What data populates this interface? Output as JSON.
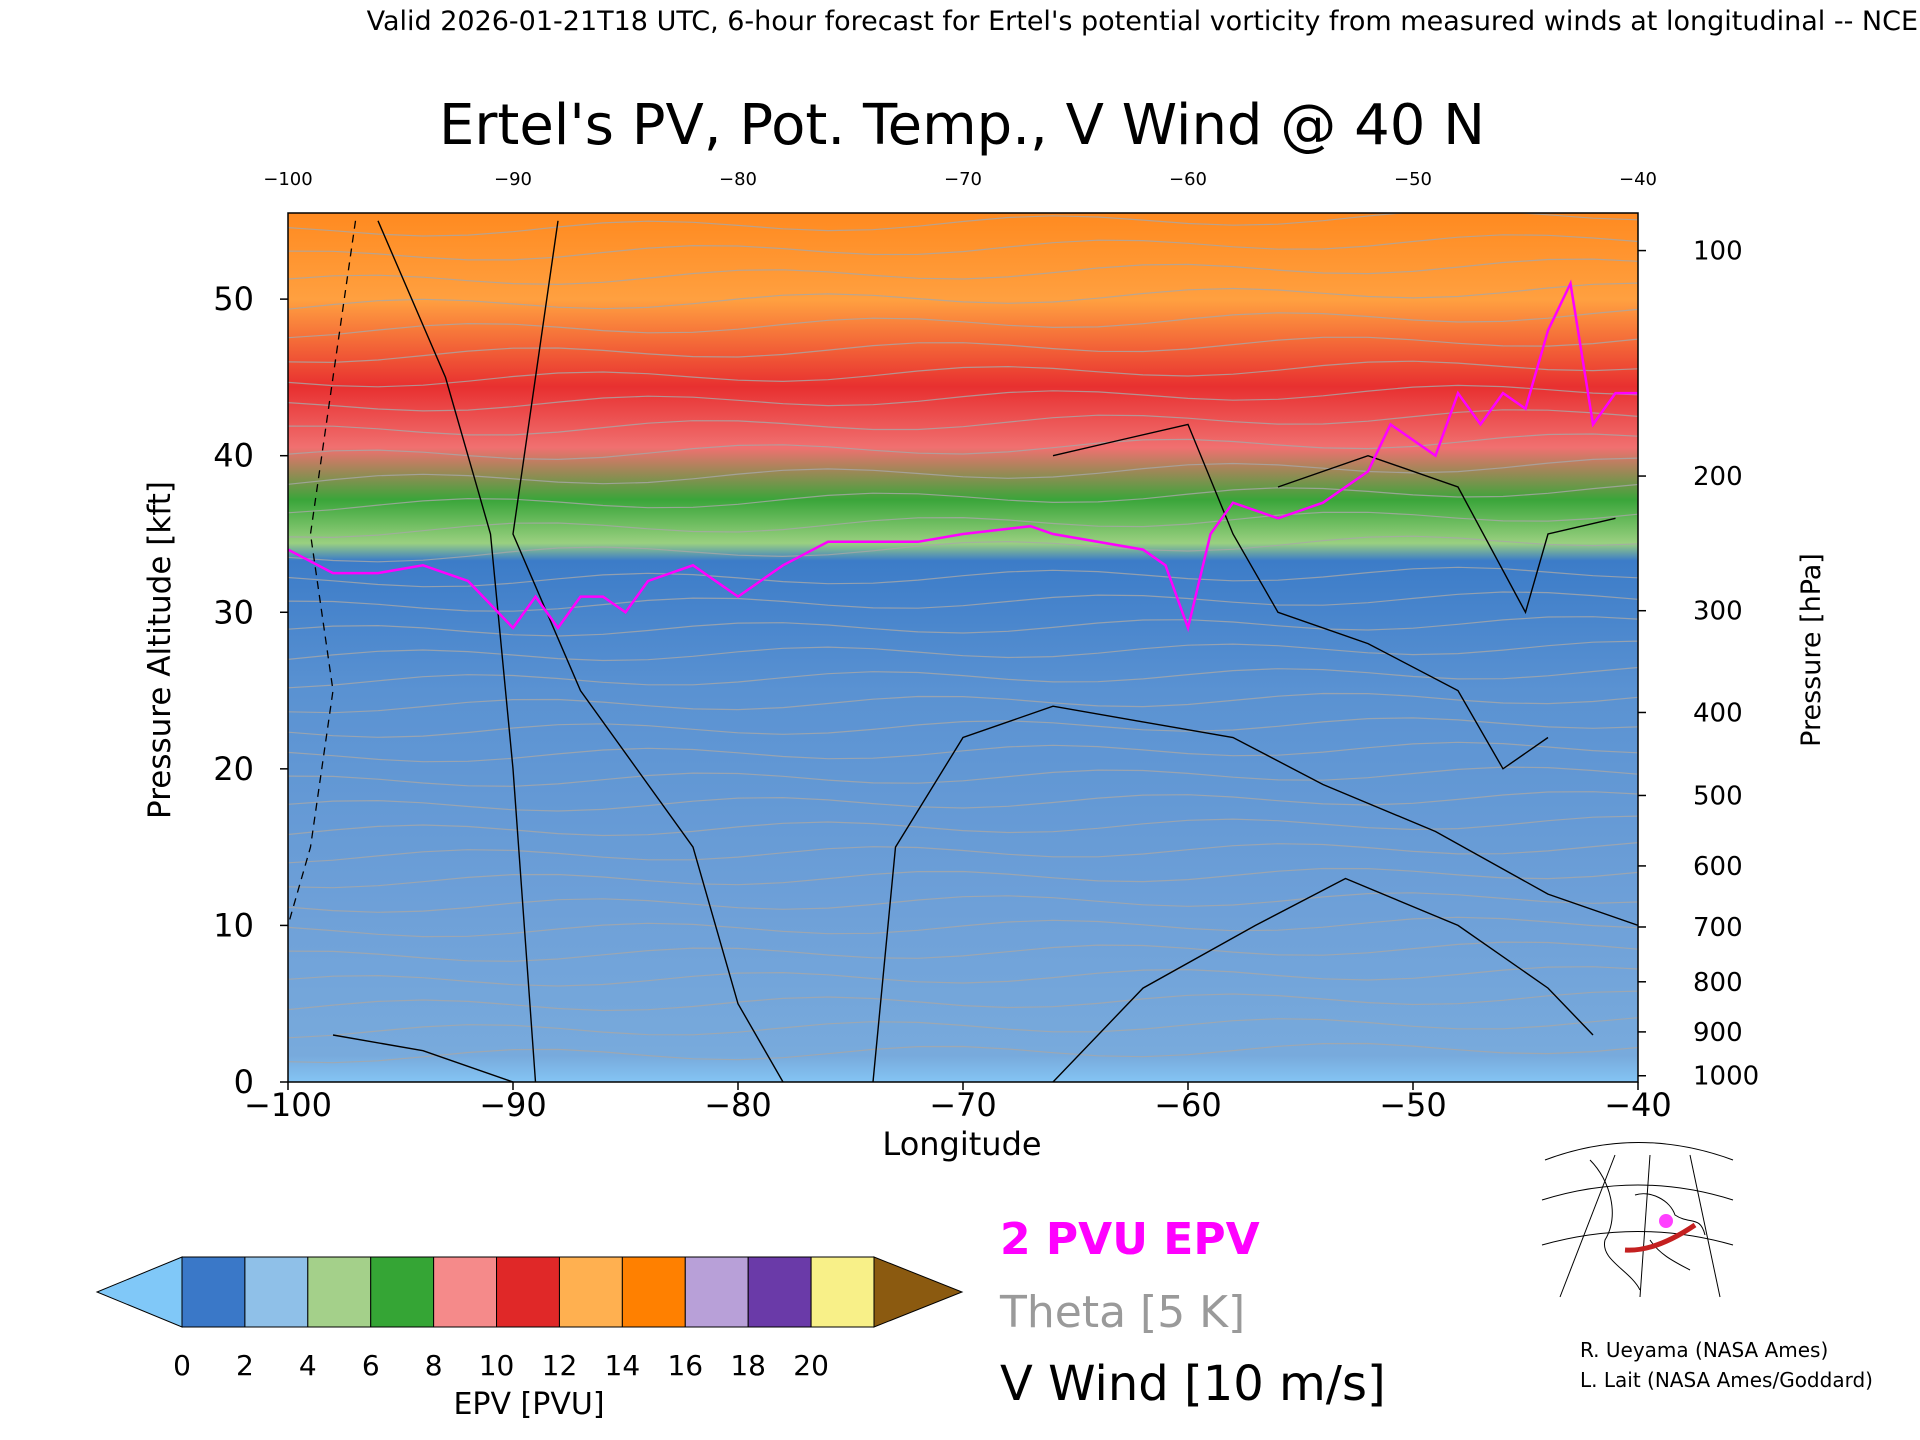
{
  "header": {
    "banner": "Valid 2026-01-21T18 UTC, 6-hour forecast for Ertel's potential vorticity from measured winds at longitudinal -- NCE"
  },
  "chart_data": {
    "type": "heatmap",
    "title": "Ertel's PV, Pot. Temp., V Wind @ 40 N",
    "xlabel": "Longitude",
    "ylabel": "Pressure Altitude [kft]",
    "y2label": "Pressure [hPa]",
    "x_range": [
      -100,
      -40
    ],
    "y_range": [
      0,
      55.5
    ],
    "x_ticks": [
      -100,
      -90,
      -80,
      -70,
      -60,
      -50,
      -40
    ],
    "x_tick_labels": [
      "−100",
      "−90",
      "−80",
      "−70",
      "−60",
      "−50",
      "−40"
    ],
    "y_ticks": [
      0,
      10,
      20,
      30,
      40,
      50
    ],
    "pressure_ticks": [
      {
        "hpa": 100,
        "kft": 53.1
      },
      {
        "hpa": 200,
        "kft": 38.7
      },
      {
        "hpa": 300,
        "kft": 30.1
      },
      {
        "hpa": 400,
        "kft": 23.6
      },
      {
        "hpa": 500,
        "kft": 18.3
      },
      {
        "hpa": 600,
        "kft": 13.8
      },
      {
        "hpa": 700,
        "kft": 9.9
      },
      {
        "hpa": 800,
        "kft": 6.4
      },
      {
        "hpa": 900,
        "kft": 3.2
      },
      {
        "hpa": 1000,
        "kft": 0.4
      }
    ],
    "tropopause_2pvu_kft": [
      [
        -100,
        34
      ],
      [
        -98,
        32.5
      ],
      [
        -96,
        32.5
      ],
      [
        -94,
        33
      ],
      [
        -92,
        32
      ],
      [
        -90,
        29
      ],
      [
        -89,
        31
      ],
      [
        -88,
        29
      ],
      [
        -87,
        31
      ],
      [
        -86,
        31
      ],
      [
        -85,
        30
      ],
      [
        -84,
        32
      ],
      [
        -82,
        33
      ],
      [
        -80,
        31
      ],
      [
        -78,
        33
      ],
      [
        -76,
        34.5
      ],
      [
        -72,
        34.5
      ],
      [
        -70,
        35
      ],
      [
        -67,
        35.5
      ],
      [
        -66,
        35
      ],
      [
        -62,
        34
      ],
      [
        -61,
        33
      ],
      [
        -60,
        29
      ],
      [
        -59,
        35
      ],
      [
        -58,
        37
      ],
      [
        -56,
        36
      ],
      [
        -54,
        37
      ],
      [
        -52,
        39
      ],
      [
        -51,
        42
      ],
      [
        -50,
        41
      ],
      [
        -49,
        40
      ],
      [
        -48,
        44
      ],
      [
        -47,
        42
      ],
      [
        -46,
        44
      ],
      [
        -45,
        43
      ],
      [
        -44,
        48
      ],
      [
        -43,
        51
      ],
      [
        -42,
        42
      ],
      [
        -41,
        44
      ],
      [
        -40,
        44
      ]
    ],
    "colorbar": {
      "label": "EPV [PVU]",
      "tick_labels": [
        "0",
        "2",
        "4",
        "6",
        "8",
        "10",
        "12",
        "14",
        "16",
        "18",
        "20"
      ],
      "colors": [
        "#3a78c8",
        "#8fc0e8",
        "#a4d08a",
        "#35a535",
        "#f58a8a",
        "#e02828",
        "#ffb050",
        "#ff8000",
        "#b8a0d8",
        "#6a3aa8",
        "#f8f088"
      ],
      "under_color": "#80c8f8",
      "over_color": "#8b5a10"
    },
    "legend": [
      {
        "label": "2 PVU EPV",
        "color": "#ff00ff"
      },
      {
        "label": "Theta [5 K]",
        "color": "#9a9a9a"
      },
      {
        "label": "V Wind [10 m/s]",
        "color": "#000000"
      }
    ]
  },
  "credits": {
    "line1": "R. Ueyama (NASA Ames)",
    "line2": "L. Lait (NASA Ames/Goddard)"
  }
}
